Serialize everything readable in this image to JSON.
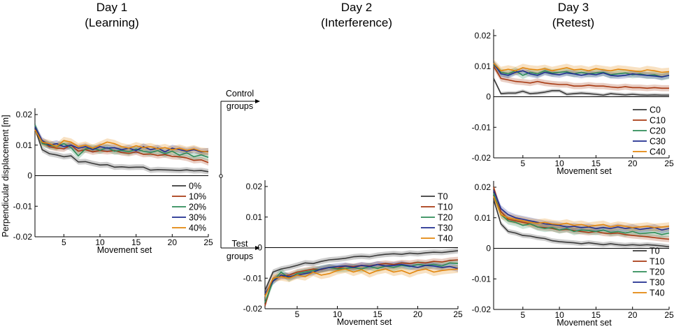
{
  "titles": {
    "day1": "Day 1",
    "day1_sub": "(Learning)",
    "day2": "Day 2",
    "day2_sub": "(Interference)",
    "day3": "Day 3",
    "day3_sub": "(Retest)"
  },
  "flow": {
    "control_line1": "Control",
    "control_line2": "groups",
    "test_line1": "Test",
    "test_line2": "groups"
  },
  "colors": {
    "c0": "#3a3a3a",
    "c10": "#a83a12",
    "c20": "#2e8b57",
    "c30": "#1f2d8f",
    "c40": "#e2860c"
  },
  "chart_data": [
    {
      "id": "day1",
      "type": "line",
      "title": "Day 1 (Learning)",
      "xlabel": "Movement set",
      "ylabel": "Perpendicular displacement [m]",
      "xlim": [
        1,
        25
      ],
      "ylim": [
        -0.02,
        0.022
      ],
      "xticks": [
        5,
        10,
        15,
        20,
        25
      ],
      "xtick_labels": [
        "5",
        "10",
        "15",
        "20",
        "25"
      ],
      "yticks": [
        0.02,
        0.01,
        0,
        -0.01,
        -0.02
      ],
      "ytick_labels": [
        "0.02",
        "0.01",
        "0",
        "-0.01",
        "-0.02"
      ],
      "legend_position": "bottom-right",
      "series": [
        {
          "name": "0%",
          "color": "#3a3a3a",
          "band": 0.0009,
          "values": [
            0.0155,
            0.0085,
            0.0072,
            0.0068,
            0.0062,
            0.0065,
            0.0045,
            0.0046,
            0.004,
            0.0035,
            0.0036,
            0.0028,
            0.0029,
            0.0027,
            0.0028,
            0.0028,
            0.0018,
            0.002,
            0.0019,
            0.0018,
            0.0017,
            0.0019,
            0.0016,
            0.0017,
            0.0013
          ]
        },
        {
          "name": "10%",
          "color": "#a83a12",
          "band": 0.001,
          "values": [
            0.016,
            0.011,
            0.0095,
            0.009,
            0.0088,
            0.01,
            0.008,
            0.0085,
            0.0078,
            0.0082,
            0.0079,
            0.0082,
            0.0076,
            0.0073,
            0.0078,
            0.007,
            0.0071,
            0.0066,
            0.0069,
            0.0063,
            0.0062,
            0.0058,
            0.005,
            0.0052,
            0.0043
          ]
        },
        {
          "name": "20%",
          "color": "#2e8b57",
          "band": 0.0012,
          "values": [
            0.0165,
            0.0105,
            0.01,
            0.0095,
            0.0105,
            0.0092,
            0.0065,
            0.0088,
            0.009,
            0.0083,
            0.0092,
            0.008,
            0.0083,
            0.0078,
            0.0087,
            0.008,
            0.0076,
            0.0082,
            0.0072,
            0.008,
            0.0067,
            0.0075,
            0.0062,
            0.0068,
            0.006
          ]
        },
        {
          "name": "30%",
          "color": "#1f2d8f",
          "band": 0.0011,
          "values": [
            0.016,
            0.0115,
            0.01,
            0.0105,
            0.0095,
            0.01,
            0.009,
            0.0095,
            0.0085,
            0.0095,
            0.009,
            0.0092,
            0.0085,
            0.009,
            0.0082,
            0.0095,
            0.0085,
            0.009,
            0.0078,
            0.009,
            0.0085,
            0.008,
            0.0085,
            0.0078,
            0.008
          ]
        },
        {
          "name": "40%",
          "color": "#e2860c",
          "band": 0.0012,
          "values": [
            0.015,
            0.011,
            0.0105,
            0.0095,
            0.0115,
            0.011,
            0.0095,
            0.01,
            0.009,
            0.01,
            0.011,
            0.0105,
            0.0095,
            0.009,
            0.0098,
            0.0092,
            0.0095,
            0.0088,
            0.0092,
            0.0085,
            0.009,
            0.0083,
            0.0088,
            0.008,
            0.0078
          ]
        }
      ]
    },
    {
      "id": "day2",
      "type": "line",
      "title": "Day 2 (Interference)",
      "xlabel": "Movement set",
      "ylabel": "",
      "xlim": [
        1,
        25
      ],
      "ylim": [
        -0.02,
        0.022
      ],
      "xticks": [
        5,
        10,
        15,
        20,
        25
      ],
      "xtick_labels": [
        "5",
        "10",
        "15",
        "20",
        "25"
      ],
      "yticks": [
        0.02,
        0.01,
        0,
        -0.01,
        -0.02
      ],
      "ytick_labels": [
        "0.02",
        "0.01",
        "0",
        "-0.01",
        "-0.02"
      ],
      "legend_position": "top-right",
      "series": [
        {
          "name": "T0",
          "color": "#3a3a3a",
          "band": 0.0009,
          "values": [
            -0.014,
            -0.008,
            -0.007,
            -0.0065,
            -0.0058,
            -0.005,
            -0.0052,
            -0.0045,
            -0.004,
            -0.0038,
            -0.0035,
            -0.003,
            -0.0028,
            -0.003,
            -0.0025,
            -0.0022,
            -0.002,
            -0.0022,
            -0.0018,
            -0.002,
            -0.0017,
            -0.0015,
            -0.0016,
            -0.0013,
            -0.001
          ]
        },
        {
          "name": "T10",
          "color": "#a83a12",
          "band": 0.001,
          "values": [
            -0.019,
            -0.01,
            -0.0095,
            -0.009,
            -0.008,
            -0.0075,
            -0.007,
            -0.0072,
            -0.0065,
            -0.0068,
            -0.006,
            -0.0062,
            -0.0058,
            -0.006,
            -0.0055,
            -0.0052,
            -0.0055,
            -0.005,
            -0.0052,
            -0.0048,
            -0.005,
            -0.0045,
            -0.0047,
            -0.0042,
            -0.004
          ]
        },
        {
          "name": "T20",
          "color": "#2e8b57",
          "band": 0.0012,
          "values": [
            -0.018,
            -0.011,
            -0.008,
            -0.01,
            -0.0085,
            -0.008,
            -0.0075,
            -0.007,
            -0.0065,
            -0.007,
            -0.0068,
            -0.0065,
            -0.007,
            -0.0062,
            -0.0068,
            -0.006,
            -0.0065,
            -0.0058,
            -0.0062,
            -0.0055,
            -0.0058,
            -0.0055,
            -0.006,
            -0.005,
            -0.0052
          ]
        },
        {
          "name": "T30",
          "color": "#1f2d8f",
          "band": 0.0011,
          "values": [
            -0.015,
            -0.011,
            -0.009,
            -0.0095,
            -0.009,
            -0.0085,
            -0.008,
            -0.007,
            -0.0065,
            -0.0062,
            -0.006,
            -0.0065,
            -0.0058,
            -0.0062,
            -0.0055,
            -0.006,
            -0.0058,
            -0.0055,
            -0.006,
            -0.0065,
            -0.0058,
            -0.006,
            -0.0065,
            -0.0062,
            -0.0068
          ]
        },
        {
          "name": "T40",
          "color": "#e2860c",
          "band": 0.0013,
          "values": [
            -0.016,
            -0.01,
            -0.0095,
            -0.01,
            -0.009,
            -0.0095,
            -0.008,
            -0.009,
            -0.0085,
            -0.0075,
            -0.007,
            -0.008,
            -0.0072,
            -0.0085,
            -0.0075,
            -0.007,
            -0.008,
            -0.0075,
            -0.0085,
            -0.0075,
            -0.007,
            -0.008,
            -0.0075,
            -0.0072,
            -0.007
          ]
        }
      ]
    },
    {
      "id": "day3_control",
      "type": "line",
      "title": "Day 3 (Retest) — Control groups",
      "xlabel": "Movement set",
      "ylabel": "",
      "xlim": [
        1,
        25
      ],
      "ylim": [
        -0.02,
        0.022
      ],
      "xticks": [
        5,
        10,
        15,
        20,
        25
      ],
      "xtick_labels": [
        "5",
        "10",
        "15",
        "20",
        "25"
      ],
      "yticks": [
        0.02,
        0.01,
        0,
        -0.01,
        -0.02
      ],
      "ytick_labels": [
        "0.02",
        "0.01",
        "0",
        "-0.01",
        "-0.02"
      ],
      "legend_position": "bottom-right",
      "series": [
        {
          "name": "C0",
          "color": "#3a3a3a",
          "band": 0.0006,
          "values": [
            0.006,
            0.001,
            0.0012,
            0.0012,
            0.0018,
            0.001,
            0.0012,
            0.0015,
            0.002,
            0.002,
            0.0008,
            0.001,
            0.0012,
            0.001,
            0.0008,
            0.0005,
            0.001,
            0.0008,
            0.0006,
            0.0008,
            0.0006,
            0.0005,
            0.0006,
            0.0005,
            0.0005
          ]
        },
        {
          "name": "C10",
          "color": "#a83a12",
          "band": 0.001,
          "values": [
            0.01,
            0.006,
            0.0055,
            0.005,
            0.0048,
            0.0045,
            0.005,
            0.0045,
            0.0042,
            0.004,
            0.004,
            0.0035,
            0.0035,
            0.0038,
            0.0035,
            0.0035,
            0.0032,
            0.003,
            0.0033,
            0.003,
            0.003,
            0.0028,
            0.003,
            0.0028,
            0.0028
          ]
        },
        {
          "name": "C20",
          "color": "#2e8b57",
          "band": 0.0012,
          "values": [
            0.0105,
            0.008,
            0.0075,
            0.0085,
            0.007,
            0.008,
            0.0075,
            0.0085,
            0.0078,
            0.008,
            0.0082,
            0.0075,
            0.008,
            0.0075,
            0.0078,
            0.008,
            0.0072,
            0.0075,
            0.0078,
            0.0072,
            0.0075,
            0.007,
            0.0072,
            0.0065,
            0.007
          ]
        },
        {
          "name": "C30",
          "color": "#1f2d8f",
          "band": 0.001,
          "values": [
            0.011,
            0.0075,
            0.007,
            0.008,
            0.0085,
            0.0075,
            0.007,
            0.008,
            0.0075,
            0.0072,
            0.0078,
            0.0075,
            0.007,
            0.0075,
            0.0072,
            0.0078,
            0.007,
            0.0068,
            0.007,
            0.0075,
            0.0072,
            0.007,
            0.0068,
            0.0065,
            0.007
          ]
        },
        {
          "name": "C40",
          "color": "#e2860c",
          "band": 0.0013,
          "values": [
            0.011,
            0.0085,
            0.009,
            0.0085,
            0.0095,
            0.009,
            0.0088,
            0.0092,
            0.0085,
            0.009,
            0.0095,
            0.0088,
            0.009,
            0.0085,
            0.0092,
            0.0088,
            0.0085,
            0.009,
            0.0088,
            0.0085,
            0.0082,
            0.0088,
            0.0085,
            0.008,
            0.0082
          ]
        }
      ]
    },
    {
      "id": "day3_test",
      "type": "line",
      "title": "Day 3 (Retest) — Test groups",
      "xlabel": "Movement set",
      "ylabel": "",
      "xlim": [
        1,
        25
      ],
      "ylim": [
        -0.02,
        0.022
      ],
      "xticks": [
        5,
        10,
        15,
        20,
        25
      ],
      "xtick_labels": [
        "5",
        "10",
        "15",
        "20",
        "25"
      ],
      "yticks": [
        0.02,
        0.01,
        0,
        -0.01,
        -0.02
      ],
      "ytick_labels": [
        "0.02",
        "0.01",
        "0",
        "-0.01",
        "-0.02"
      ],
      "legend_position": "bottom-right",
      "series": [
        {
          "name": "T0",
          "color": "#3a3a3a",
          "band": 0.0008,
          "values": [
            0.016,
            0.008,
            0.0055,
            0.005,
            0.0042,
            0.004,
            0.0035,
            0.0032,
            0.0025,
            0.0022,
            0.002,
            0.0018,
            0.0015,
            0.0018,
            0.0015,
            0.0012,
            0.0015,
            0.0012,
            0.001,
            0.0012,
            0.001,
            0.0012,
            0.001,
            0.0008,
            0.0005
          ]
        },
        {
          "name": "T10",
          "color": "#a83a12",
          "band": 0.001,
          "values": [
            0.02,
            0.012,
            0.0095,
            0.009,
            0.0085,
            0.008,
            0.007,
            0.0068,
            0.0065,
            0.006,
            0.0062,
            0.0058,
            0.0055,
            0.0052,
            0.0055,
            0.005,
            0.0048,
            0.005,
            0.0045,
            0.0042,
            0.004,
            0.0038,
            0.0035,
            0.0032,
            0.003
          ]
        },
        {
          "name": "T20",
          "color": "#2e8b57",
          "band": 0.0012,
          "values": [
            0.018,
            0.011,
            0.009,
            0.0085,
            0.0075,
            0.008,
            0.007,
            0.0065,
            0.0068,
            0.006,
            0.0065,
            0.0055,
            0.006,
            0.0058,
            0.0055,
            0.006,
            0.0052,
            0.0055,
            0.005,
            0.0055,
            0.0048,
            0.005,
            0.0052,
            0.0045,
            0.005
          ]
        },
        {
          "name": "T30",
          "color": "#1f2d8f",
          "band": 0.0011,
          "values": [
            0.019,
            0.013,
            0.011,
            0.01,
            0.0095,
            0.009,
            0.0085,
            0.008,
            0.0078,
            0.0075,
            0.007,
            0.0072,
            0.0068,
            0.007,
            0.0065,
            0.0068,
            0.0065,
            0.007,
            0.0065,
            0.0068,
            0.0062,
            0.0065,
            0.0068,
            0.006,
            0.0065
          ]
        },
        {
          "name": "T40",
          "color": "#e2860c",
          "band": 0.0013,
          "values": [
            0.017,
            0.011,
            0.01,
            0.0095,
            0.009,
            0.0085,
            0.0082,
            0.0085,
            0.008,
            0.0078,
            0.0082,
            0.0075,
            0.0078,
            0.0072,
            0.0075,
            0.0078,
            0.007,
            0.0075,
            0.0072,
            0.0068,
            0.007,
            0.0072,
            0.0068,
            0.007,
            0.0072
          ]
        }
      ]
    }
  ]
}
